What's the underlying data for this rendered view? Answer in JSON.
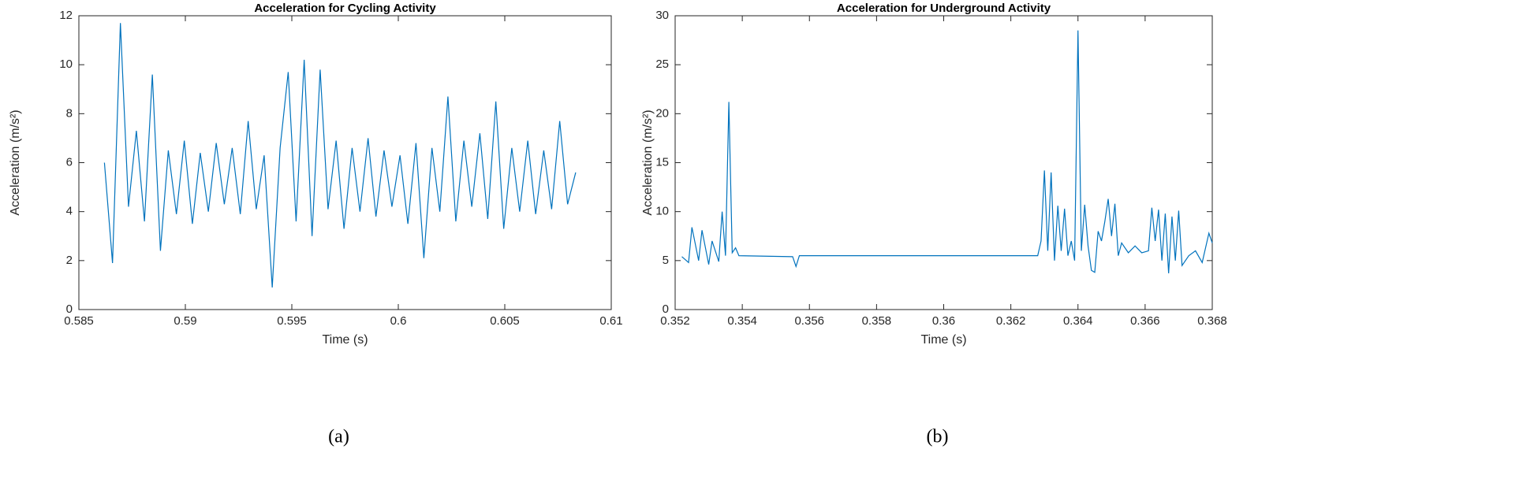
{
  "chart_data": [
    {
      "type": "line",
      "title": "Acceleration for Cycling Activity",
      "xlabel": "Time (s)",
      "ylabel": "Acceleration (m/s²)",
      "caption": "(a)",
      "color": "#0072bd",
      "xlim": [
        0.585,
        0.61
      ],
      "xticks": [
        0.585,
        0.59,
        0.595,
        0.6,
        0.605,
        0.61
      ],
      "ylim": [
        0,
        12
      ],
      "yticks": [
        0,
        2,
        4,
        6,
        8,
        10,
        12
      ],
      "x": [
        0.5862,
        0.58658,
        0.58695,
        0.58733,
        0.5877,
        0.58808,
        0.58845,
        0.58883,
        0.5892,
        0.58958,
        0.58995,
        0.59033,
        0.5907,
        0.59108,
        0.59145,
        0.59183,
        0.5922,
        0.59258,
        0.59295,
        0.59333,
        0.5937,
        0.59408,
        0.59445,
        0.59483,
        0.5952,
        0.59558,
        0.59595,
        0.59633,
        0.5967,
        0.59708,
        0.59745,
        0.59783,
        0.5982,
        0.59858,
        0.59895,
        0.59933,
        0.5997,
        0.60008,
        0.60045,
        0.60083,
        0.6012,
        0.60158,
        0.60195,
        0.60233,
        0.6027,
        0.60308,
        0.60345,
        0.60383,
        0.6042,
        0.60458,
        0.60495,
        0.60533,
        0.6057,
        0.60608,
        0.60645,
        0.60683,
        0.6072,
        0.60758,
        0.60795,
        0.60833
      ],
      "values": [
        6.0,
        1.9,
        11.7,
        4.2,
        7.3,
        3.6,
        9.6,
        2.4,
        6.5,
        3.9,
        6.9,
        3.5,
        6.4,
        4.0,
        6.8,
        4.3,
        6.6,
        3.9,
        7.7,
        4.1,
        6.3,
        0.9,
        6.6,
        9.7,
        3.6,
        10.2,
        3.0,
        9.8,
        4.1,
        6.9,
        3.3,
        6.6,
        4.0,
        7.0,
        3.8,
        6.5,
        4.2,
        6.3,
        3.5,
        6.8,
        2.1,
        6.6,
        4.0,
        8.7,
        3.6,
        6.9,
        4.2,
        7.2,
        3.7,
        8.5,
        3.3,
        6.6,
        4.0,
        6.9,
        3.9,
        6.5,
        4.1,
        7.7,
        4.3,
        5.6
      ]
    },
    {
      "type": "line",
      "title": "Acceleration for Underground Activity",
      "xlabel": "Time (s)",
      "ylabel": "Acceleration (m/s²)",
      "caption": "(b)",
      "color": "#0072bd",
      "xlim": [
        0.352,
        0.368
      ],
      "xticks": [
        0.352,
        0.354,
        0.356,
        0.358,
        0.36,
        0.362,
        0.364,
        0.366,
        0.368
      ],
      "ylim": [
        0,
        30
      ],
      "yticks": [
        0,
        5,
        10,
        15,
        20,
        25,
        30
      ],
      "x": [
        0.3522,
        0.3524,
        0.3525,
        0.3527,
        0.3528,
        0.353,
        0.3531,
        0.3533,
        0.3534,
        0.3535,
        0.3536,
        0.3537,
        0.3538,
        0.3539,
        0.3555,
        0.3556,
        0.3557,
        0.36,
        0.3628,
        0.3629,
        0.363,
        0.3631,
        0.3632,
        0.3633,
        0.3634,
        0.3635,
        0.3636,
        0.3637,
        0.3638,
        0.3639,
        0.364,
        0.3641,
        0.3642,
        0.3643,
        0.3644,
        0.3645,
        0.3646,
        0.3647,
        0.3648,
        0.3649,
        0.365,
        0.3651,
        0.3652,
        0.3653,
        0.3655,
        0.3657,
        0.3659,
        0.3661,
        0.3662,
        0.3663,
        0.3664,
        0.3665,
        0.3666,
        0.3667,
        0.3668,
        0.3669,
        0.367,
        0.3671,
        0.3673,
        0.3675,
        0.3677,
        0.3679,
        0.368
      ],
      "values": [
        5.4,
        4.8,
        8.4,
        5.0,
        8.1,
        4.6,
        7.0,
        4.9,
        10.0,
        5.5,
        21.2,
        5.8,
        6.3,
        5.5,
        5.4,
        4.4,
        5.5,
        5.5,
        5.5,
        7.0,
        14.2,
        6.0,
        14.0,
        5.0,
        10.6,
        6.0,
        10.3,
        5.5,
        7.0,
        5.0,
        28.5,
        6.0,
        10.7,
        6.5,
        4.0,
        3.8,
        8.0,
        7.0,
        9.0,
        11.3,
        7.5,
        10.8,
        5.5,
        6.8,
        5.8,
        6.5,
        5.8,
        6.0,
        10.4,
        7.0,
        10.2,
        5.0,
        9.8,
        3.7,
        9.5,
        5.0,
        10.1,
        4.5,
        5.5,
        6.0,
        4.8,
        7.8,
        6.8
      ]
    }
  ]
}
